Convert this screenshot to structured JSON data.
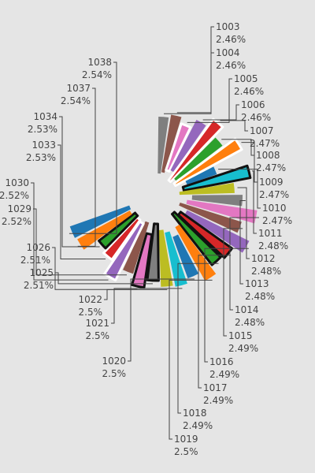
{
  "chart_data": {
    "type": "pie",
    "style": "exploded radial wedges with outside labels",
    "labels": [
      "1003",
      "1004",
      "1005",
      "1006",
      "1007",
      "1008",
      "1009",
      "1010",
      "1011",
      "1012",
      "1013",
      "1014",
      "1015",
      "1016",
      "1017",
      "1018",
      "1019",
      "1020",
      "1021",
      "1022",
      "1025",
      "1026",
      "1029",
      "1030",
      "1033",
      "1034",
      "1037",
      "1038"
    ],
    "value_labels": [
      "2.46%",
      "2.46%",
      "2.46%",
      "2.46%",
      "2.47%",
      "2.47%",
      "2.47%",
      "2.47%",
      "2.48%",
      "2.48%",
      "2.48%",
      "2.48%",
      "2.49%",
      "2.49%",
      "2.49%",
      "2.49%",
      "2.5%",
      "2.5%",
      "2.5%",
      "2.5%",
      "2.51%",
      "2.51%",
      "2.52%",
      "2.52%",
      "2.53%",
      "2.53%",
      "2.54%",
      "2.54%"
    ],
    "values": [
      2.46,
      2.46,
      2.46,
      2.46,
      2.47,
      2.47,
      2.47,
      2.47,
      2.48,
      2.48,
      2.48,
      2.48,
      2.49,
      2.49,
      2.49,
      2.49,
      2.5,
      2.5,
      2.5,
      2.5,
      2.51,
      2.51,
      2.52,
      2.52,
      2.53,
      2.53,
      2.54,
      2.54
    ],
    "colors": [
      "#7f7f7f",
      "#8c564b",
      "#e377c2",
      "#9467bd",
      "#d62728",
      "#2ca02c",
      "#ff7f0e",
      "#1f77b4",
      "#17becf",
      "#bcbd22",
      "#7f7f7f",
      "#e377c2",
      "#8c564b",
      "#9467bd",
      "#d62728",
      "#2ca02c",
      "#ff7f0e",
      "#1f77b4",
      "#17becf",
      "#bcbd22",
      "#7f7f7f",
      "#e377c2",
      "#8c564b",
      "#9467bd",
      "#d62728",
      "#2ca02c",
      "#ff7f0e",
      "#1f77b4",
      "#17becf",
      "#bcbd22",
      "#7f7f7f",
      "#e377c2",
      "#8c564b",
      "#9467bd",
      "#d62728",
      "#2ca02c",
      "#ff7f0e",
      "#1f77b4",
      "#17becf",
      "#bcbd22"
    ],
    "label_color": "#444444",
    "background": "#e5e5e5"
  }
}
